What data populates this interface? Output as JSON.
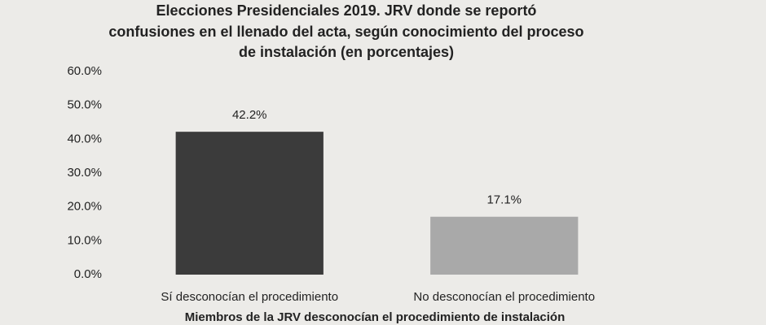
{
  "chart_data": {
    "type": "bar",
    "title": [
      "Elecciones Presidenciales 2019. JRV donde se reportó",
      "confusiones en el llenado del acta, según conocimiento del proceso",
      "de instalación (en porcentajes)"
    ],
    "categories": [
      "Sí desconocían el procedimiento",
      "No desconocían el procedimiento"
    ],
    "values": [
      42.2,
      17.1
    ],
    "value_labels": [
      "42.2%",
      "17.1%"
    ],
    "colors": [
      "#3b3b3b",
      "#a9a9a9"
    ],
    "x_label": "Miembros de la JRV desconocían el procedimiento de instalación",
    "ylim": [
      0,
      60
    ],
    "yticks": [
      {
        "value": 0,
        "label": "0.0%"
      },
      {
        "value": 10,
        "label": "10.0%"
      },
      {
        "value": 20,
        "label": "20.0%"
      },
      {
        "value": 30,
        "label": "30.0%"
      },
      {
        "value": 40,
        "label": "40.0%"
      },
      {
        "value": 50,
        "label": "50.0%"
      },
      {
        "value": 60,
        "label": "60.0%"
      }
    ],
    "grid": false
  }
}
